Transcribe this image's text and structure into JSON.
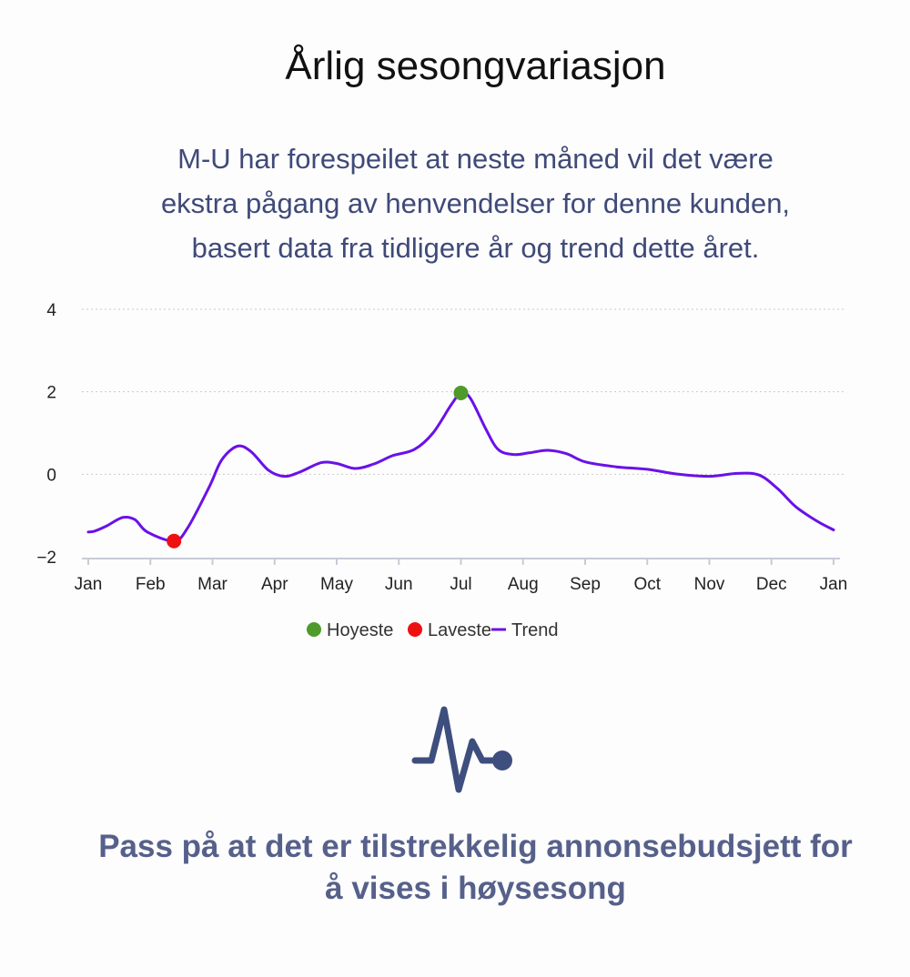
{
  "header": {
    "title": "Årlig sesongvariasjon",
    "description_lines": [
      "M-U har forespeilet at neste måned vil det være",
      "ekstra pågang av henvendelser for denne kunden,",
      "basert data fra tidligere år og trend dette året."
    ]
  },
  "chart_data": {
    "type": "line",
    "title": "",
    "xlabel": "",
    "ylabel": "",
    "x_ticks": [
      "Jan",
      "Feb",
      "Mar",
      "Apr",
      "May",
      "Jun",
      "Jul",
      "Aug",
      "Sep",
      "Oct",
      "Nov",
      "Dec",
      "Jan"
    ],
    "y_ticks": [
      "4",
      "2",
      "0",
      "−2"
    ],
    "ylim": [
      -2,
      4
    ],
    "grid": true,
    "legend_position": "bottom",
    "series": [
      {
        "name": "Trend",
        "color": "#6a11e8",
        "points": [
          [
            0,
            -1.4
          ],
          [
            0.1,
            -1.38
          ],
          [
            0.3,
            -1.25
          ],
          [
            0.55,
            -1.05
          ],
          [
            0.75,
            -1.1
          ],
          [
            0.95,
            -1.4
          ],
          [
            1.38,
            -1.62
          ],
          [
            1.6,
            -1.3
          ],
          [
            1.95,
            -0.3
          ],
          [
            2.15,
            0.35
          ],
          [
            2.4,
            0.68
          ],
          [
            2.62,
            0.55
          ],
          [
            2.9,
            0.1
          ],
          [
            3.15,
            -0.05
          ],
          [
            3.4,
            0.05
          ],
          [
            3.75,
            0.28
          ],
          [
            4.0,
            0.26
          ],
          [
            4.3,
            0.14
          ],
          [
            4.6,
            0.25
          ],
          [
            4.9,
            0.45
          ],
          [
            5.25,
            0.6
          ],
          [
            5.55,
            1.0
          ],
          [
            5.85,
            1.7
          ],
          [
            6.0,
            1.97
          ],
          [
            6.15,
            1.85
          ],
          [
            6.4,
            1.1
          ],
          [
            6.6,
            0.6
          ],
          [
            6.85,
            0.48
          ],
          [
            7.1,
            0.52
          ],
          [
            7.4,
            0.58
          ],
          [
            7.7,
            0.5
          ],
          [
            8.0,
            0.3
          ],
          [
            8.5,
            0.18
          ],
          [
            9.0,
            0.12
          ],
          [
            9.5,
            0.0
          ],
          [
            10.0,
            -0.05
          ],
          [
            10.45,
            0.02
          ],
          [
            10.8,
            -0.02
          ],
          [
            11.1,
            -0.35
          ],
          [
            11.4,
            -0.8
          ],
          [
            11.75,
            -1.15
          ],
          [
            12.0,
            -1.35
          ]
        ]
      }
    ],
    "markers": [
      {
        "name": "Hoyeste",
        "x": 6.0,
        "y": 1.97,
        "color": "#4e9a2a"
      },
      {
        "name": "Laveste",
        "x": 1.38,
        "y": -1.62,
        "color": "#ee1111"
      }
    ],
    "legend": [
      "Hoyeste",
      "Laveste",
      "Trend"
    ]
  },
  "footer": {
    "icon": "heartbeat-pulse-icon",
    "icon_color": "#3e4e7e",
    "cta_lines": [
      "Pass på at det er tilstrekkelig annonsebudsjett for",
      "å vises i høysesong"
    ]
  }
}
